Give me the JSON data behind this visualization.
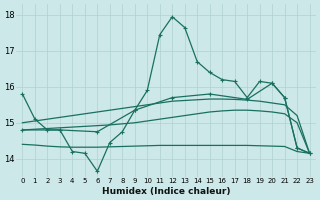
{
  "xlabel": "Humidex (Indice chaleur)",
  "bg_color": "#cce8e8",
  "grid_color": "#b0d0d0",
  "line_color": "#1a7060",
  "xlim": [
    -0.5,
    23.5
  ],
  "ylim": [
    13.5,
    18.3
  ],
  "yticks": [
    14,
    15,
    16,
    17,
    18
  ],
  "xticks": [
    0,
    1,
    2,
    3,
    4,
    5,
    6,
    7,
    8,
    9,
    10,
    11,
    12,
    13,
    14,
    15,
    16,
    17,
    18,
    19,
    20,
    21,
    22,
    23
  ],
  "series": [
    {
      "x": [
        0,
        1,
        2,
        3,
        4,
        5,
        6,
        7,
        8,
        9,
        10,
        11,
        12,
        13,
        14,
        15,
        16,
        17,
        18,
        19,
        20,
        21,
        22,
        23
      ],
      "y": [
        15.8,
        15.1,
        14.8,
        14.8,
        14.2,
        14.15,
        13.65,
        14.45,
        14.75,
        15.35,
        15.9,
        17.45,
        17.95,
        17.65,
        16.7,
        16.4,
        16.2,
        16.15,
        15.7,
        16.15,
        16.1,
        15.7,
        14.3,
        14.15
      ],
      "marker": "+",
      "linewidth": 0.9
    },
    {
      "x": [
        0,
        1,
        2,
        3,
        4,
        5,
        6,
        7,
        8,
        9,
        10,
        11,
        12,
        13,
        14,
        15,
        16,
        17,
        18,
        19,
        20,
        21,
        22,
        23
      ],
      "y": [
        15.0,
        15.05,
        15.1,
        15.15,
        15.2,
        15.25,
        15.3,
        15.35,
        15.4,
        15.45,
        15.5,
        15.55,
        15.6,
        15.62,
        15.64,
        15.66,
        15.66,
        15.65,
        15.63,
        15.6,
        15.55,
        15.5,
        15.2,
        14.15
      ],
      "marker": null,
      "linewidth": 0.9
    },
    {
      "x": [
        0,
        1,
        2,
        3,
        4,
        5,
        6,
        7,
        8,
        9,
        10,
        11,
        12,
        13,
        14,
        15,
        16,
        17,
        18,
        19,
        20,
        21,
        22,
        23
      ],
      "y": [
        14.8,
        14.82,
        14.84,
        14.86,
        14.88,
        14.9,
        14.92,
        14.94,
        14.97,
        15.0,
        15.05,
        15.1,
        15.15,
        15.2,
        15.25,
        15.3,
        15.33,
        15.35,
        15.35,
        15.33,
        15.3,
        15.25,
        15.0,
        14.15
      ],
      "marker": null,
      "linewidth": 0.9
    },
    {
      "x": [
        0,
        1,
        2,
        3,
        4,
        5,
        6,
        7,
        8,
        9,
        10,
        11,
        12,
        13,
        14,
        15,
        16,
        17,
        18,
        19,
        20,
        21,
        22,
        23
      ],
      "y": [
        14.4,
        14.38,
        14.35,
        14.33,
        14.32,
        14.32,
        14.32,
        14.33,
        14.34,
        14.35,
        14.36,
        14.37,
        14.37,
        14.37,
        14.37,
        14.37,
        14.37,
        14.37,
        14.37,
        14.36,
        14.35,
        14.34,
        14.2,
        14.15
      ],
      "marker": null,
      "linewidth": 0.9
    },
    {
      "x": [
        0,
        3,
        6,
        9,
        12,
        15,
        18,
        20,
        21,
        22,
        23
      ],
      "y": [
        14.8,
        14.8,
        14.75,
        15.35,
        15.7,
        15.8,
        15.65,
        16.1,
        15.7,
        14.3,
        14.15
      ],
      "marker": "+",
      "linewidth": 0.9
    }
  ]
}
